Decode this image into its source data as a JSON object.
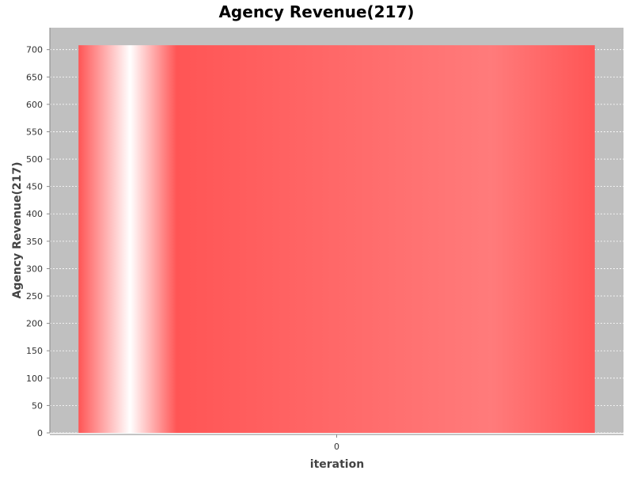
{
  "chart_data": {
    "type": "bar",
    "title": "Agency Revenue(217)",
    "xlabel": "iteration",
    "ylabel": "Agency Revenue(217)",
    "categories": [
      "0"
    ],
    "series": [
      {
        "values": [
          708
        ]
      }
    ],
    "ylim": [
      0,
      740
    ],
    "yticks": [
      0,
      50,
      100,
      150,
      200,
      250,
      300,
      350,
      400,
      450,
      500,
      550,
      600,
      650,
      700
    ],
    "grid": true,
    "legend": "none",
    "colors": {
      "bar": "#ff5555",
      "plot_background": "#c0c0c0",
      "gridline": "#ffffff",
      "axis": "#888888",
      "text": "#333333"
    }
  }
}
